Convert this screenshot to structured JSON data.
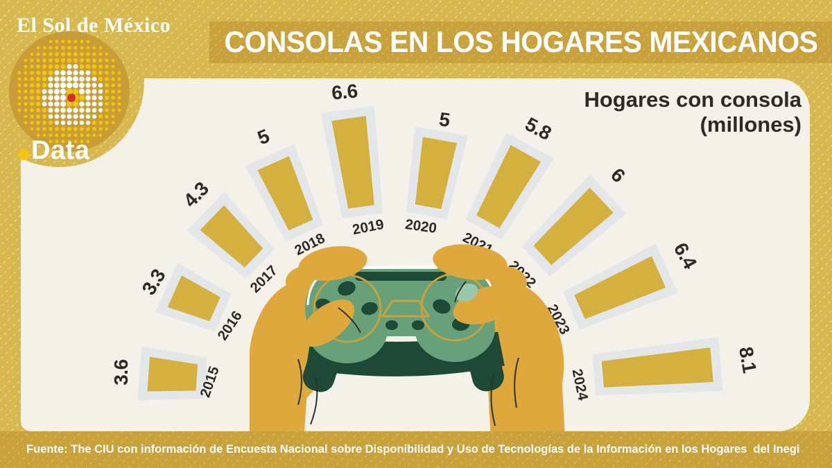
{
  "masthead": {
    "brand": "El Sol de México",
    "data_label": "Data"
  },
  "header": {
    "title": "CONSOLAS EN LOS HOGARES MEXICANOS"
  },
  "legend": {
    "line1": "Hogares con consola",
    "line2": "(millones)"
  },
  "chart_data": {
    "type": "bar",
    "layout": "radial-fan",
    "title": "Hogares con consola (millones)",
    "unit": "millones",
    "categories": [
      "2015",
      "2016",
      "2017",
      "2018",
      "2019",
      "2020",
      "2021",
      "2022",
      "2023",
      "2024"
    ],
    "values": [
      3.6,
      3.3,
      4.3,
      5,
      6.6,
      5,
      5.8,
      6,
      6.4,
      8.1
    ],
    "value_labels": [
      "3.6",
      "3.3",
      "4.3",
      "5",
      "6.6",
      "5",
      "5.8",
      "6",
      "6.4",
      "8.1"
    ],
    "legend_position": "top-right",
    "colors": {
      "bar": "#d4b13e",
      "track": "#e3e7ea",
      "label": "#2b2a25"
    }
  },
  "footer": {
    "source": "Fuente: The CIU con información de Encuesta Nacional sobre Disponibilidad y Uso de Tecnologías de la Información en los Hogares  del Inegi"
  },
  "colors": {
    "background": "#d6b84e",
    "band": "#c9a13b",
    "panel": "#f4f1e9",
    "ink": "#2b2a25",
    "hand": "#dfa83c",
    "controller_green": "#68a179",
    "controller_dark": "#1d4936",
    "controller_teal": "#9ac7ae",
    "gold_outline": "#c9a23a",
    "accent_red": "#d32f23",
    "accent_yellow": "#f3c50e"
  }
}
